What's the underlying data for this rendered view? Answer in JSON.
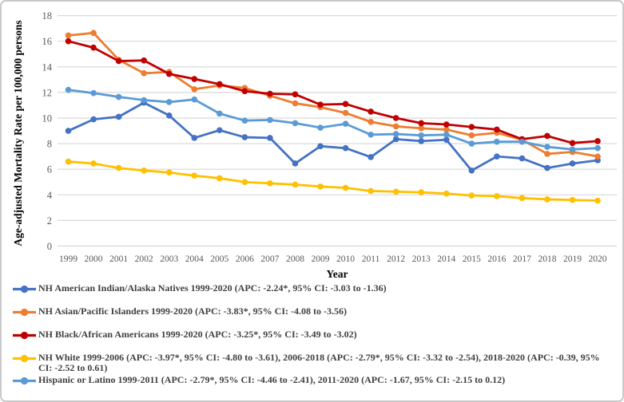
{
  "figure": {
    "y_axis_title": "Age-adjusted Mortality Rate per 100,000 persons",
    "x_axis_title": "Year"
  },
  "chart_data": {
    "type": "line",
    "title": "",
    "xlabel": "Year",
    "ylabel": "Age-adjusted Mortality Rate per 100,000 persons",
    "ylim": [
      0,
      18
    ],
    "y_ticks": [
      0,
      2,
      4,
      6,
      8,
      10,
      12,
      14,
      16,
      18
    ],
    "grid": true,
    "gridline_color": "#d9d9d9",
    "tick_label_color": "#595959",
    "legend_position": "bottom-left",
    "marker": "circle",
    "x": [
      1999,
      2000,
      2001,
      2002,
      2003,
      2004,
      2005,
      2006,
      2007,
      2008,
      2009,
      2010,
      2011,
      2012,
      2013,
      2014,
      2015,
      2016,
      2017,
      2018,
      2019,
      2020
    ],
    "series": [
      {
        "id": "nh-american-indian-alaska-natives",
        "label": "NH American Indian/Alaska Natives 1999-2020 (APC: -2.24*, 95% CI: -3.03 to -1.36)",
        "color": "#4472C4",
        "values": [
          9.0,
          9.9,
          10.1,
          11.2,
          10.2,
          8.45,
          9.05,
          8.5,
          8.45,
          6.45,
          7.8,
          7.65,
          6.95,
          8.35,
          8.2,
          8.3,
          5.9,
          7.0,
          6.85,
          6.1,
          6.45,
          6.7
        ]
      },
      {
        "id": "nh-asian-pacific-islanders",
        "label": "NH Asian/Pacific Islanders 1999-2020 (APC: -3.83*, 95% CI: -4.08 to -3.56)",
        "color": "#ED7D31",
        "values": [
          16.45,
          16.65,
          14.55,
          13.5,
          13.6,
          12.25,
          12.55,
          12.35,
          11.75,
          11.15,
          10.85,
          10.4,
          9.7,
          9.35,
          9.2,
          9.1,
          8.65,
          8.85,
          8.3,
          7.2,
          7.35,
          7.0
        ]
      },
      {
        "id": "nh-black-african-americans",
        "label": "NH Black/African Americans 1999-2020 (APC: -3.25*, 95% CI: -3.49 to -3.02)",
        "color": "#C00000",
        "values": [
          16.0,
          15.5,
          14.45,
          14.5,
          13.45,
          13.05,
          12.65,
          12.1,
          11.9,
          11.85,
          11.05,
          11.1,
          10.5,
          10.0,
          9.6,
          9.5,
          9.3,
          9.1,
          8.35,
          8.6,
          8.05,
          8.2
        ]
      },
      {
        "id": "nh-white",
        "label": "NH White 1999-2006 (APC: -3.97*, 95% CI: -4.80 to -3.61), 2006-2018 (APC: -2.79*, 95% CI: -3.32 to -2.54), 2018-2020 (APC: -0.39, 95% CI: -2.52 to 0.61)",
        "color": "#FFC000",
        "values": [
          6.6,
          6.45,
          6.1,
          5.9,
          5.75,
          5.5,
          5.3,
          5.0,
          4.9,
          4.8,
          4.65,
          4.55,
          4.3,
          4.25,
          4.2,
          4.1,
          3.95,
          3.9,
          3.75,
          3.65,
          3.6,
          3.55
        ]
      },
      {
        "id": "hispanic-or-latino",
        "label": "Hispanic or Latino 1999-2011 (APC: -2.79*, 95% CI: -4.46 to -2.41), 2011-2020 (APC: -1.67, 95% CI: -2.15 to 0.12)",
        "color": "#5B9BD5",
        "values": [
          12.2,
          11.95,
          11.65,
          11.4,
          11.25,
          11.45,
          10.35,
          9.8,
          9.85,
          9.6,
          9.25,
          9.55,
          8.7,
          8.75,
          8.65,
          8.7,
          8.0,
          8.15,
          8.15,
          7.75,
          7.55,
          7.65
        ]
      }
    ]
  }
}
